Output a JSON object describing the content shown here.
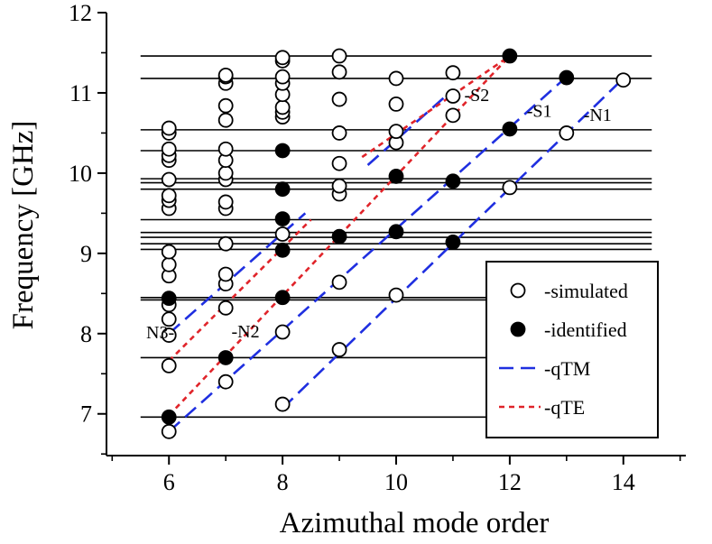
{
  "chart_data": {
    "type": "scatter",
    "title": "",
    "xlabel": "Azimuthal mode order",
    "ylabel": "Frequency [GHz]",
    "xlim": [
      4.9,
      15.1
    ],
    "ylim": [
      6.48,
      12.0
    ],
    "xticks": [
      6,
      8,
      10,
      12,
      14
    ],
    "yticks": [
      7,
      8,
      9,
      10,
      11,
      12
    ],
    "grid": false,
    "legend_position": "bottom-right",
    "horizontal_lines": {
      "x_range": [
        5.5,
        14.5
      ],
      "y": [
        6.96,
        7.7,
        8.42,
        8.45,
        9.05,
        9.12,
        9.2,
        9.26,
        9.42,
        9.8,
        9.88,
        9.93,
        10.28,
        10.54,
        11.18,
        11.46
      ]
    },
    "series": [
      {
        "name": "-simulated",
        "marker": "open-circle",
        "points": [
          [
            6,
            6.78
          ],
          [
            6,
            7.6
          ],
          [
            6,
            7.98
          ],
          [
            6,
            8.18
          ],
          [
            6,
            8.36
          ],
          [
            6,
            8.72
          ],
          [
            6,
            8.86
          ],
          [
            6,
            9.02
          ],
          [
            6,
            9.56
          ],
          [
            6,
            9.66
          ],
          [
            6,
            9.72
          ],
          [
            6,
            9.92
          ],
          [
            6,
            10.16
          ],
          [
            6,
            10.22
          ],
          [
            6,
            10.3
          ],
          [
            6,
            10.5
          ],
          [
            6,
            10.56
          ],
          [
            7,
            7.4
          ],
          [
            7,
            8.32
          ],
          [
            7,
            8.62
          ],
          [
            7,
            8.74
          ],
          [
            7,
            9.12
          ],
          [
            7,
            9.56
          ],
          [
            7,
            9.64
          ],
          [
            7,
            9.92
          ],
          [
            7,
            10.0
          ],
          [
            7,
            10.16
          ],
          [
            7,
            10.3
          ],
          [
            7,
            10.66
          ],
          [
            7,
            10.84
          ],
          [
            7,
            11.12
          ],
          [
            7,
            11.2
          ],
          [
            7,
            11.22
          ],
          [
            8,
            7.12
          ],
          [
            8,
            8.02
          ],
          [
            8,
            9.24
          ],
          [
            8,
            10.7
          ],
          [
            8,
            10.76
          ],
          [
            8,
            10.82
          ],
          [
            8,
            10.98
          ],
          [
            8,
            11.12
          ],
          [
            8,
            11.2
          ],
          [
            8,
            11.4
          ],
          [
            8,
            11.44
          ],
          [
            9,
            7.8
          ],
          [
            9,
            8.64
          ],
          [
            9,
            9.74
          ],
          [
            9,
            9.84
          ],
          [
            9,
            10.12
          ],
          [
            9,
            10.5
          ],
          [
            9,
            10.92
          ],
          [
            9,
            11.26
          ],
          [
            9,
            11.46
          ],
          [
            10,
            8.48
          ],
          [
            10,
            10.38
          ],
          [
            10,
            10.52
          ],
          [
            10,
            10.86
          ],
          [
            10,
            11.18
          ],
          [
            11,
            10.72
          ],
          [
            11,
            10.96
          ],
          [
            11,
            11.25
          ],
          [
            12,
            9.82
          ],
          [
            13,
            10.5
          ],
          [
            14,
            11.16
          ]
        ]
      },
      {
        "name": "-identified",
        "marker": "filled-circle",
        "points": [
          [
            6,
            6.96
          ],
          [
            6,
            8.44
          ],
          [
            7,
            7.7
          ],
          [
            8,
            8.45
          ],
          [
            8,
            9.04
          ],
          [
            8,
            9.43
          ],
          [
            8,
            9.8
          ],
          [
            8,
            10.28
          ],
          [
            9,
            9.21
          ],
          [
            10,
            9.27
          ],
          [
            10,
            9.96
          ],
          [
            11,
            9.14
          ],
          [
            11,
            9.9
          ],
          [
            12,
            10.55
          ],
          [
            12,
            11.46
          ],
          [
            13,
            11.19
          ]
        ]
      },
      {
        "name": "-qTM",
        "style": "long-dash",
        "color": "#1f2fe0",
        "lines": [
          {
            "x": [
              6,
              13
            ],
            "y": [
              6.78,
              11.2
            ]
          },
          {
            "x": [
              8,
              14
            ],
            "y": [
              7.07,
              11.18
            ]
          },
          {
            "x": [
              6,
              8.4
            ],
            "y": [
              8.0,
              9.5
            ]
          },
          {
            "x": [
              9.5,
              11
            ],
            "y": [
              10.1,
              11.04
            ]
          }
        ]
      },
      {
        "name": "-qTE",
        "style": "short-dash",
        "color": "#e0242a",
        "lines": [
          {
            "x": [
              6,
              12
            ],
            "y": [
              6.98,
              11.46
            ]
          },
          {
            "x": [
              6,
              8.5
            ],
            "y": [
              7.66,
              9.42
            ]
          },
          {
            "x": [
              9.4,
              12
            ],
            "y": [
              10.2,
              11.46
            ]
          }
        ]
      }
    ],
    "annotations": [
      {
        "text": "N3-",
        "x": 5.6,
        "y": 7.94
      },
      {
        "text": "-N2",
        "x": 7.1,
        "y": 7.95
      },
      {
        "text": "-S2",
        "x": 11.2,
        "y": 10.9
      },
      {
        "text": "-S1",
        "x": 12.3,
        "y": 10.7
      },
      {
        "text": "-N1",
        "x": 13.3,
        "y": 10.65
      }
    ]
  }
}
